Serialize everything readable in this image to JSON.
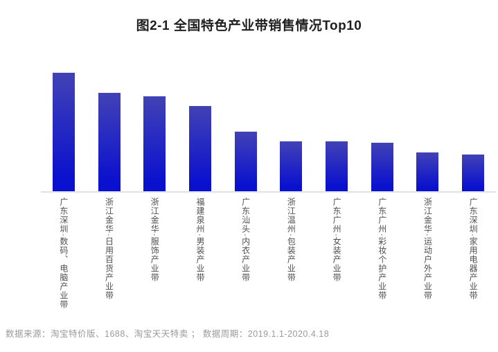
{
  "title": "图2-1 全国特色产业带销售情况Top10",
  "footer": {
    "source_note": "数据来源：淘宝特价版、1688、淘宝天天特卖 ； 数据周期：2019.1.1-2020.4.18"
  },
  "chart_data": {
    "type": "bar",
    "title": "图2-1 全国特色产业带销售情况Top10",
    "categories": [
      "广东深圳·数码、电脑产业带",
      "浙江金华·日用百货产业带",
      "浙江金华·服饰产业带",
      "福建泉州·男装产业带",
      "广东汕头·内衣产业带",
      "浙江温州·包装产业带",
      "广东广州·女装产业带",
      "广东广州·彩妆个护产业带",
      "浙江金华·运动户外产业带",
      "广东深圳·家用电器产业带"
    ],
    "values": [
      100,
      83,
      80,
      72,
      50,
      42,
      42,
      41,
      33,
      31
    ],
    "value_scale_note": "no numeric y-axis shown; values estimated relative to tallest bar = 100",
    "xlabel": "",
    "ylabel": "",
    "ylim": [
      0,
      100
    ],
    "grid": false,
    "legend": false,
    "colors": {
      "bar_gradient_top": "#4242b5",
      "bar_gradient_bottom": "#0a11ce",
      "axis_line": "#e2e2e2",
      "category_label": "#4f4f4f",
      "title_text": "#1f1f1f",
      "source_text": "#9a9a9a",
      "background": "#ffffff"
    }
  }
}
